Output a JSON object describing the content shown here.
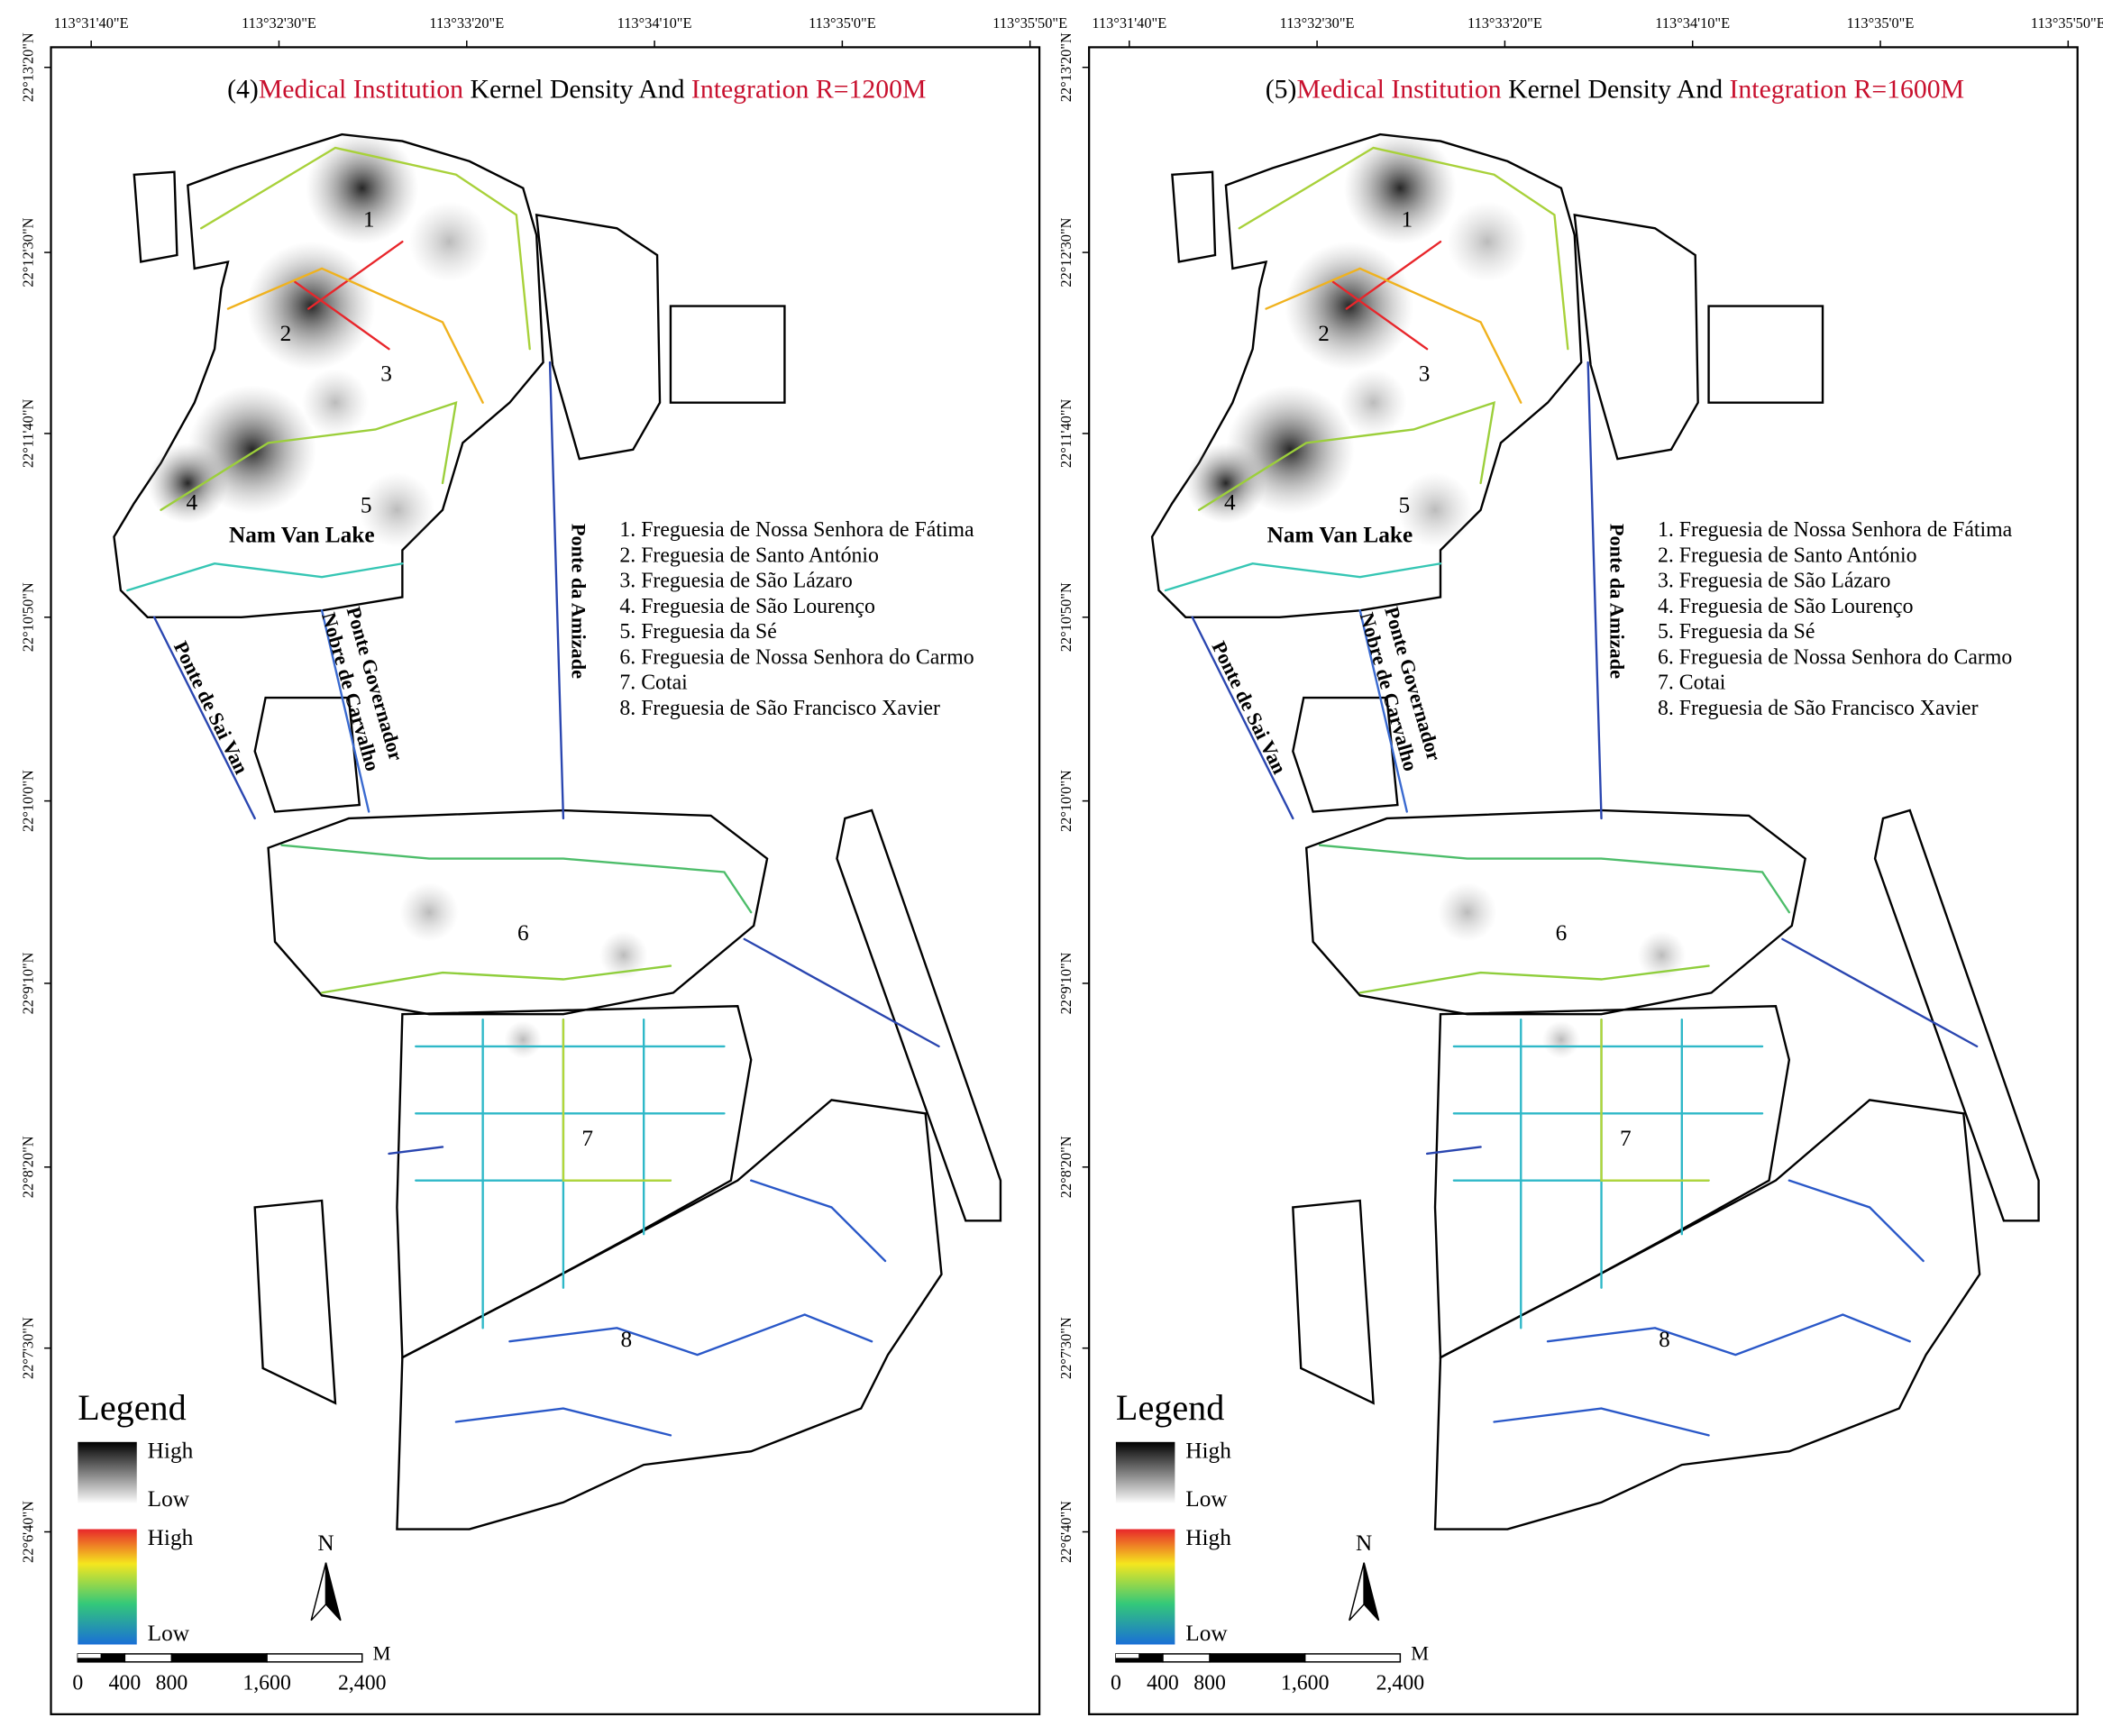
{
  "panels": [
    {
      "prefix": "(4)",
      "red1": "Medical Institution",
      "mid": " Kernel Density And ",
      "red2": "Integration R=1200M"
    },
    {
      "prefix": "(5)",
      "red1": "Medical Institution",
      "mid": " Kernel Density And ",
      "red2": "Integration R=1600M"
    }
  ],
  "top_ticks": [
    "113°31'40\"E",
    "113°32'30\"E",
    "113°33'20\"E",
    "113°34'10\"E",
    "113°35'0\"E",
    "113°35'50\"E"
  ],
  "left_ticks": [
    "22°13'20\"N",
    "22°12'30\"N",
    "22°11'40\"N",
    "22°10'50\"N",
    "22°10'0\"N",
    "22°9'10\"N",
    "22°8'20\"N",
    "22°7'30\"N",
    "22°6'40\"N"
  ],
  "district_numbers": [
    "1",
    "2",
    "3",
    "4",
    "5",
    "6",
    "7",
    "8"
  ],
  "lake": "Nam Van Lake",
  "district_list": [
    "1. Freguesia de Nossa Senhora de Fátima",
    "2. Freguesia de Santo António",
    "3. Freguesia de São Lázaro",
    "4. Freguesia de São Lourenço",
    "5. Freguesia da Sé",
    "6. Freguesia de Nossa Senhora do Carmo",
    "7. Cotai",
    "8. Freguesia de São Francisco Xavier"
  ],
  "bridges": {
    "amizade": "Ponte da Amizade",
    "saivan": "Ponte de Sai Van",
    "gov1": "Ponte Governador",
    "gov2": "Nobre de Carvalho"
  },
  "legend": {
    "title": "Legend",
    "density_high": "High",
    "density_low": "Low",
    "integration_high": "High",
    "integration_low": "Low"
  },
  "north": "N",
  "scale": {
    "unit": "M",
    "labels": [
      "0",
      "400",
      "800",
      "1,600",
      "2,400"
    ]
  }
}
